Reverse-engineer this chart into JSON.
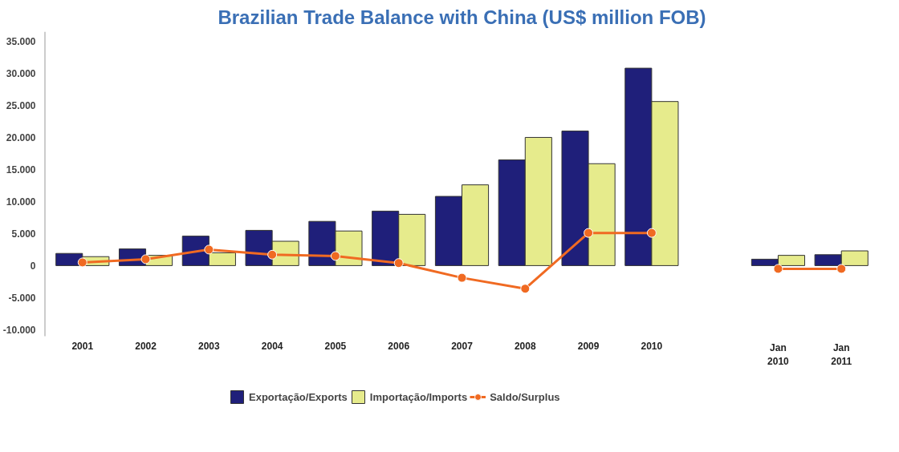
{
  "chart_data": {
    "type": "bar",
    "title": "Brazilian Trade Balance with China (US$ million FOB)",
    "categories": [
      "2001",
      "2002",
      "2003",
      "2004",
      "2005",
      "2006",
      "2007",
      "2008",
      "2009",
      "2010",
      null,
      "Jan\n2010",
      "Jan\n2011"
    ],
    "series": [
      {
        "name": "Exportação/Exports",
        "color": "#1f1f7a",
        "values": [
          1900,
          2600,
          4600,
          5500,
          6900,
          8500,
          10800,
          16500,
          21000,
          30800,
          null,
          1000,
          1700
        ]
      },
      {
        "name": "Importação/Imports",
        "color": "#e6eb8c",
        "values": [
          1400,
          1600,
          2000,
          3800,
          5400,
          8000,
          12600,
          20000,
          15900,
          25600,
          null,
          1600,
          2300
        ]
      },
      {
        "name": "Saldo/Surplus",
        "type": "line",
        "color": "#f06a22",
        "marker": "circle",
        "values": [
          500,
          1000,
          2500,
          1700,
          1500,
          400,
          -1900,
          -3600,
          5100,
          5100,
          null,
          -500,
          -500
        ]
      }
    ],
    "ylim": [
      -11000,
      36500
    ],
    "yticks": [
      {
        "value": -10000,
        "label": "-10.000"
      },
      {
        "value": -5000,
        "label": "-5.000"
      },
      {
        "value": 0,
        "label": "0"
      },
      {
        "value": 5000,
        "label": "5.000"
      },
      {
        "value": 10000,
        "label": "10.000"
      },
      {
        "value": 15000,
        "label": "15.000"
      },
      {
        "value": 20000,
        "label": "20.000"
      },
      {
        "value": 25000,
        "label": "25.000"
      },
      {
        "value": 30000,
        "label": "30.000"
      },
      {
        "value": 35000,
        "label": "35.000"
      }
    ],
    "grid": false,
    "legend": "bottom"
  }
}
